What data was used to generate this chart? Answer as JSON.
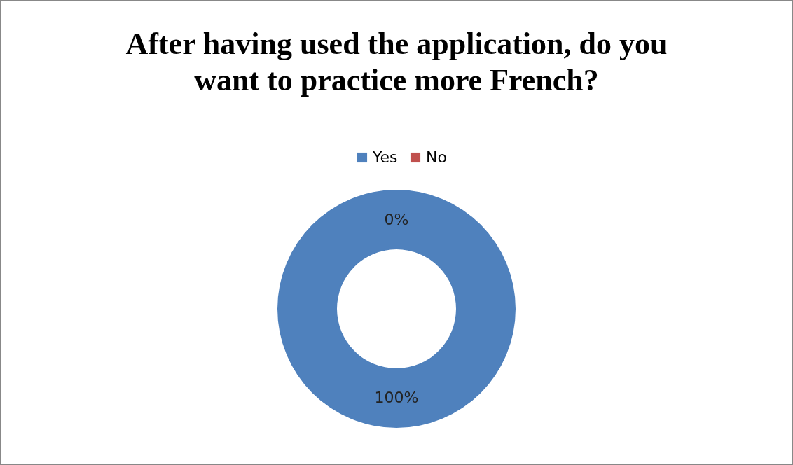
{
  "chart_data": {
    "type": "donut",
    "title": "After having used the application, do you want to practice more French?",
    "categories": [
      "Yes",
      "No"
    ],
    "values": [
      100,
      0
    ],
    "colors": [
      "#4f81bd",
      "#c0504d"
    ],
    "value_labels": [
      "100%",
      "0%"
    ],
    "legend": "top"
  }
}
